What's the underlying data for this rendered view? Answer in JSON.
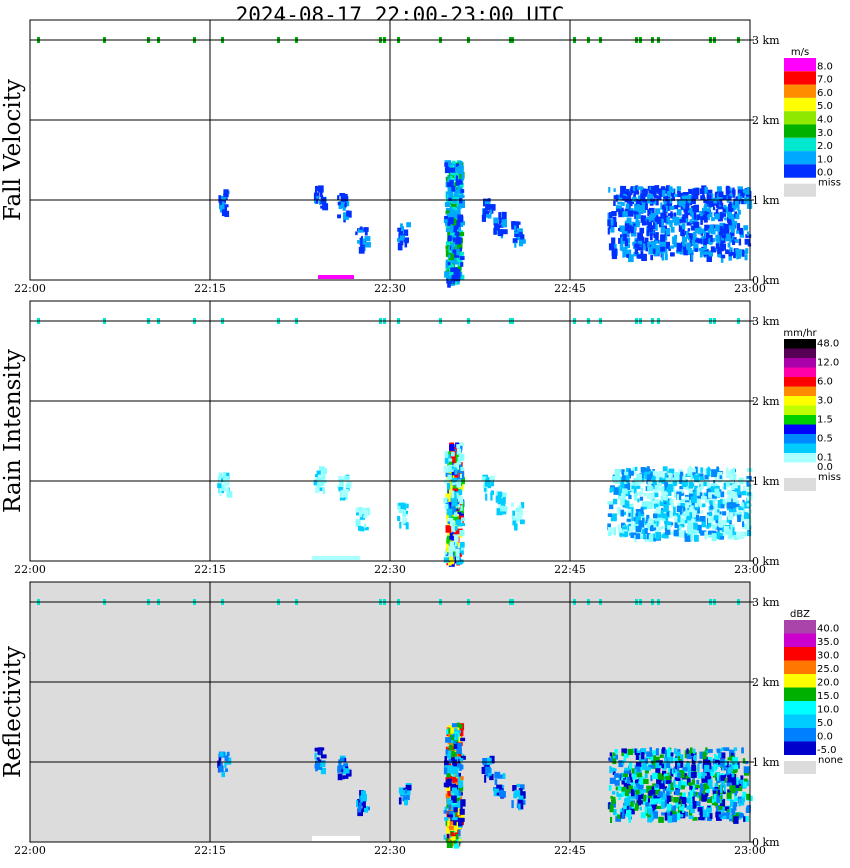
{
  "title": "2024-08-17  22:00-23:00 UTC",
  "colors": {
    "background": "#ffffff",
    "miss": "#dcdcdc"
  },
  "chart_data": [
    {
      "id": "fall_velocity",
      "type": "heatmap",
      "ylabel": "Fall Velocity",
      "x_ticks": [
        "22:00",
        "22:15",
        "22:30",
        "22:45",
        "23:00"
      ],
      "xlim": [
        "22:00",
        "23:00"
      ],
      "y_ticks": [
        "0 km",
        "1 km",
        "2 km",
        "3 km"
      ],
      "ylim_km": [
        0,
        3.5
      ],
      "grid": true,
      "background": "#ffffff",
      "colorbar": {
        "unit": "m/s",
        "levels": [
          {
            "label": "8.0",
            "color": "#ff00ff"
          },
          {
            "label": "7.0",
            "color": "#ff0000"
          },
          {
            "label": "6.0",
            "color": "#ff8c00"
          },
          {
            "label": "5.0",
            "color": "#ffff00"
          },
          {
            "label": "4.0",
            "color": "#8ee800"
          },
          {
            "label": "3.0",
            "color": "#00b000"
          },
          {
            "label": "2.0",
            "color": "#00e8d0"
          },
          {
            "label": "1.0",
            "color": "#00a8ff"
          },
          {
            "label": "0.0",
            "color": "#0030ff"
          }
        ],
        "miss_label": "miss"
      },
      "features": [
        {
          "time": "22:35.2",
          "km_from": 0.0,
          "km_to": 1.5,
          "value": "2.0-4.0",
          "color": "#00e8d0"
        },
        {
          "time": "22:49-23:00",
          "km_from": 0.1,
          "km_to": 1.4,
          "value": "0.0-2.0",
          "color": "#00a8ff"
        },
        {
          "time": "22:24-22:27",
          "km_from": 0.0,
          "km_to": 0.08,
          "value": "8.0",
          "color": "#ff00ff"
        }
      ]
    },
    {
      "id": "rain_intensity",
      "type": "heatmap",
      "ylabel": "Rain Intensity",
      "x_ticks": [
        "22:00",
        "22:15",
        "22:30",
        "22:45",
        "23:00"
      ],
      "xlim": [
        "22:00",
        "23:00"
      ],
      "y_ticks": [
        "0 km",
        "1 km",
        "2 km",
        "3 km"
      ],
      "ylim_km": [
        0,
        3.5
      ],
      "grid": true,
      "background": "#ffffff",
      "colorbar": {
        "unit": "mm/hr",
        "levels": [
          {
            "label": "48.0",
            "color": "#000000"
          },
          {
            "label": "",
            "color": "#550055"
          },
          {
            "label": "12.0",
            "color": "#aa00aa"
          },
          {
            "label": "",
            "color": "#ff00aa"
          },
          {
            "label": "6.0",
            "color": "#ff0000"
          },
          {
            "label": "",
            "color": "#ff8c00"
          },
          {
            "label": "3.0",
            "color": "#ffff00"
          },
          {
            "label": "",
            "color": "#c0ff00"
          },
          {
            "label": "1.5",
            "color": "#00d000"
          },
          {
            "label": "",
            "color": "#0000ff"
          },
          {
            "label": "0.5",
            "color": "#0088ff"
          },
          {
            "label": "",
            "color": "#00ccff"
          },
          {
            "label": "0.1",
            "color": "#aaffff"
          },
          {
            "label": "0.0",
            "color": "#ffffff"
          }
        ],
        "miss_label": "miss"
      },
      "features": [
        {
          "time": "22:35.2",
          "km_from": 0.0,
          "km_to": 1.4,
          "value": "0.5-12.0",
          "color": "#ff0000"
        },
        {
          "time": "22:49-23:00",
          "km_from": 0.1,
          "km_to": 1.3,
          "value": "0.1-0.5",
          "color": "#88ffff"
        }
      ]
    },
    {
      "id": "reflectivity",
      "type": "heatmap",
      "ylabel": "Reflectivity",
      "x_ticks": [
        "22:00",
        "22:15",
        "22:30",
        "22:45",
        "23:00"
      ],
      "xlim": [
        "22:00",
        "23:00"
      ],
      "y_ticks": [
        "0 km",
        "1 km",
        "2 km",
        "3 km"
      ],
      "ylim_km": [
        0,
        3.5
      ],
      "grid": true,
      "background": "#dcdcdc",
      "colorbar": {
        "unit": "dBZ",
        "levels": [
          {
            "label": "40.0",
            "color": "#aa44aa"
          },
          {
            "label": "35.0",
            "color": "#cc00cc"
          },
          {
            "label": "30.0",
            "color": "#ff0000"
          },
          {
            "label": "25.0",
            "color": "#ff7700"
          },
          {
            "label": "20.0",
            "color": "#ffff00"
          },
          {
            "label": "15.0",
            "color": "#00b000"
          },
          {
            "label": "10.0",
            "color": "#00ffff"
          },
          {
            "label": "5.0",
            "color": "#00ccff"
          },
          {
            "label": "0.0",
            "color": "#0080ff"
          },
          {
            "label": "-5.0",
            "color": "#0000cc"
          }
        ],
        "miss_label": "none"
      },
      "features": [
        {
          "time": "22:35.2",
          "km_from": 0.0,
          "km_to": 1.5,
          "value": "15.0-30.0",
          "color": "#ffff00"
        },
        {
          "time": "22:49-23:00",
          "km_from": 0.1,
          "km_to": 1.3,
          "value": "0.0-15.0",
          "color": "#0080ff"
        }
      ]
    }
  ]
}
